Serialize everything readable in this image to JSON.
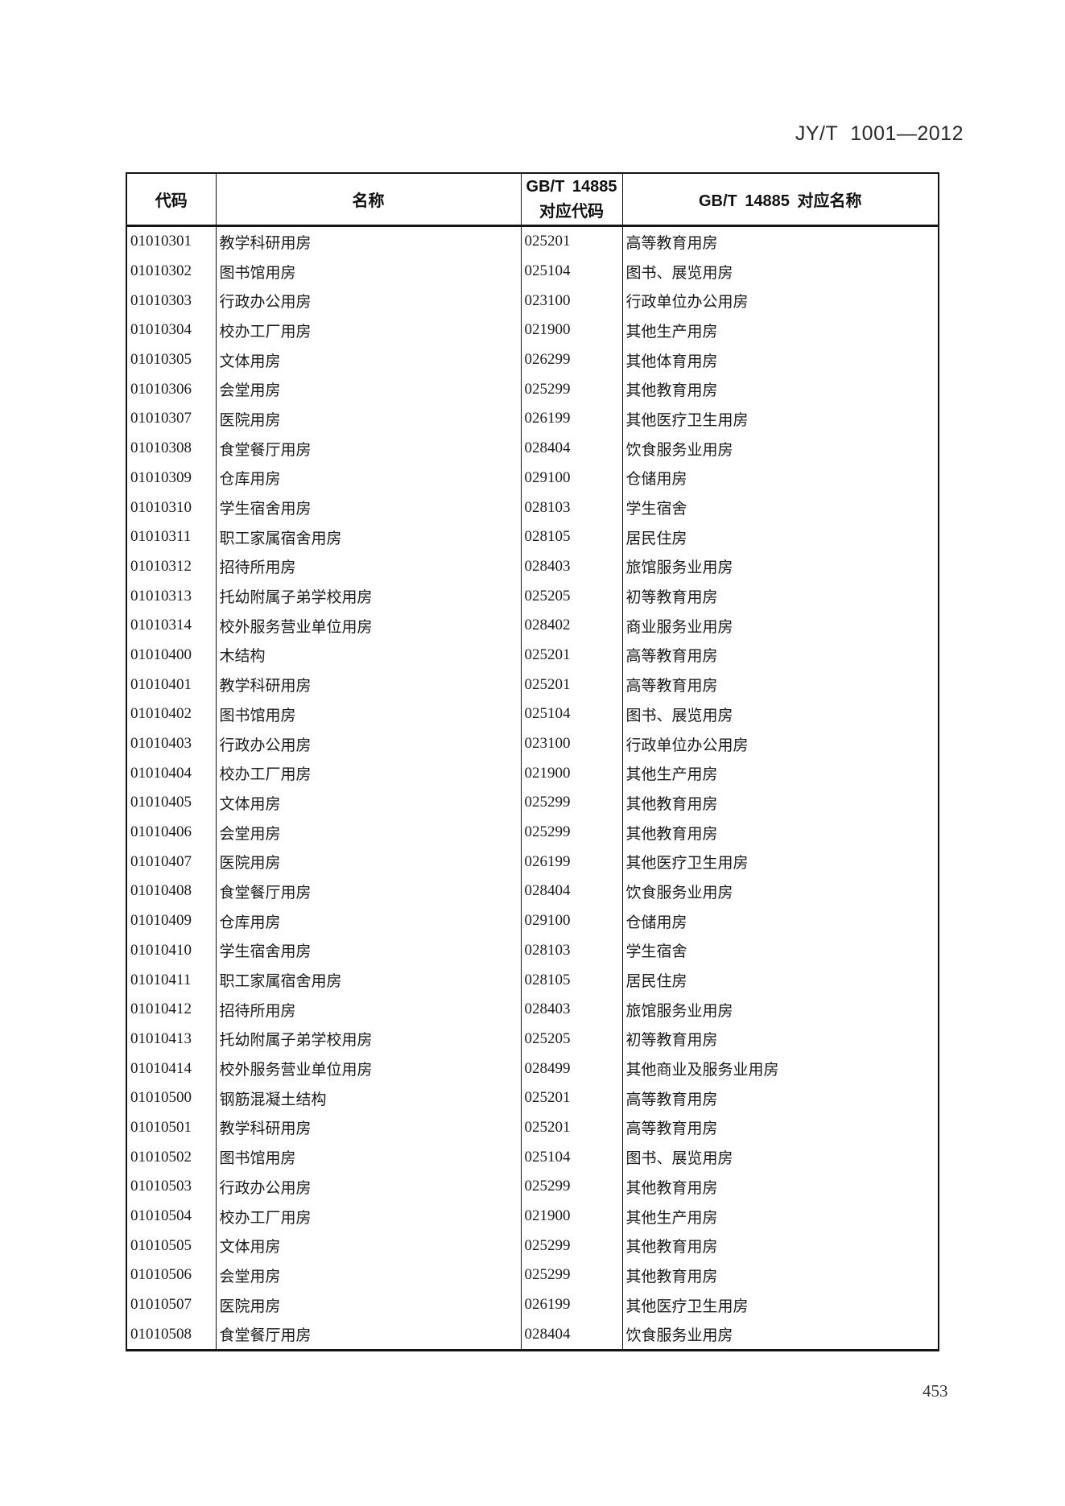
{
  "page": {
    "doc_number": "JY/T 1001—2012",
    "page_number": "453"
  },
  "table": {
    "headers": {
      "code": "代码",
      "name": "名称",
      "gbt_code": "GB/T 14885\n对应代码",
      "gbt_name": "GB/T 14885 对应名称"
    },
    "rows": [
      {
        "code": "01010301",
        "name": "教学科研用房",
        "gbt_code": "025201",
        "gbt_name": "高等教育用房"
      },
      {
        "code": "01010302",
        "name": "图书馆用房",
        "gbt_code": "025104",
        "gbt_name": "图书、展览用房"
      },
      {
        "code": "01010303",
        "name": "行政办公用房",
        "gbt_code": "023100",
        "gbt_name": "行政单位办公用房"
      },
      {
        "code": "01010304",
        "name": "校办工厂用房",
        "gbt_code": "021900",
        "gbt_name": "其他生产用房"
      },
      {
        "code": "01010305",
        "name": "文体用房",
        "gbt_code": "026299",
        "gbt_name": "其他体育用房"
      },
      {
        "code": "01010306",
        "name": "会堂用房",
        "gbt_code": "025299",
        "gbt_name": "其他教育用房"
      },
      {
        "code": "01010307",
        "name": "医院用房",
        "gbt_code": "026199",
        "gbt_name": "其他医疗卫生用房"
      },
      {
        "code": "01010308",
        "name": "食堂餐厅用房",
        "gbt_code": "028404",
        "gbt_name": "饮食服务业用房"
      },
      {
        "code": "01010309",
        "name": "仓库用房",
        "gbt_code": "029100",
        "gbt_name": "仓储用房"
      },
      {
        "code": "01010310",
        "name": "学生宿舍用房",
        "gbt_code": "028103",
        "gbt_name": "学生宿舍"
      },
      {
        "code": "01010311",
        "name": "职工家属宿舍用房",
        "gbt_code": "028105",
        "gbt_name": "居民住房"
      },
      {
        "code": "01010312",
        "name": "招待所用房",
        "gbt_code": "028403",
        "gbt_name": "旅馆服务业用房"
      },
      {
        "code": "01010313",
        "name": "托幼附属子弟学校用房",
        "gbt_code": "025205",
        "gbt_name": "初等教育用房"
      },
      {
        "code": "01010314",
        "name": "校外服务营业单位用房",
        "gbt_code": "028402",
        "gbt_name": "商业服务业用房"
      },
      {
        "code": "01010400",
        "name": "木结构",
        "gbt_code": "025201",
        "gbt_name": "高等教育用房"
      },
      {
        "code": "01010401",
        "name": "教学科研用房",
        "gbt_code": "025201",
        "gbt_name": "高等教育用房"
      },
      {
        "code": "01010402",
        "name": "图书馆用房",
        "gbt_code": "025104",
        "gbt_name": "图书、展览用房"
      },
      {
        "code": "01010403",
        "name": "行政办公用房",
        "gbt_code": "023100",
        "gbt_name": "行政单位办公用房"
      },
      {
        "code": "01010404",
        "name": "校办工厂用房",
        "gbt_code": "021900",
        "gbt_name": "其他生产用房"
      },
      {
        "code": "01010405",
        "name": "文体用房",
        "gbt_code": "025299",
        "gbt_name": "其他教育用房"
      },
      {
        "code": "01010406",
        "name": "会堂用房",
        "gbt_code": "025299",
        "gbt_name": "其他教育用房"
      },
      {
        "code": "01010407",
        "name": "医院用房",
        "gbt_code": "026199",
        "gbt_name": "其他医疗卫生用房"
      },
      {
        "code": "01010408",
        "name": "食堂餐厅用房",
        "gbt_code": "028404",
        "gbt_name": "饮食服务业用房"
      },
      {
        "code": "01010409",
        "name": "仓库用房",
        "gbt_code": "029100",
        "gbt_name": "仓储用房"
      },
      {
        "code": "01010410",
        "name": "学生宿舍用房",
        "gbt_code": "028103",
        "gbt_name": "学生宿舍"
      },
      {
        "code": "01010411",
        "name": "职工家属宿舍用房",
        "gbt_code": "028105",
        "gbt_name": "居民住房"
      },
      {
        "code": "01010412",
        "name": "招待所用房",
        "gbt_code": "028403",
        "gbt_name": "旅馆服务业用房"
      },
      {
        "code": "01010413",
        "name": "托幼附属子弟学校用房",
        "gbt_code": "025205",
        "gbt_name": "初等教育用房"
      },
      {
        "code": "01010414",
        "name": "校外服务营业单位用房",
        "gbt_code": "028499",
        "gbt_name": "其他商业及服务业用房"
      },
      {
        "code": "01010500",
        "name": "钢筋混凝土结构",
        "gbt_code": "025201",
        "gbt_name": "高等教育用房"
      },
      {
        "code": "01010501",
        "name": "教学科研用房",
        "gbt_code": "025201",
        "gbt_name": "高等教育用房"
      },
      {
        "code": "01010502",
        "name": "图书馆用房",
        "gbt_code": "025104",
        "gbt_name": "图书、展览用房"
      },
      {
        "code": "01010503",
        "name": "行政办公用房",
        "gbt_code": "025299",
        "gbt_name": "其他教育用房"
      },
      {
        "code": "01010504",
        "name": "校办工厂用房",
        "gbt_code": "021900",
        "gbt_name": "其他生产用房"
      },
      {
        "code": "01010505",
        "name": "文体用房",
        "gbt_code": "025299",
        "gbt_name": "其他教育用房"
      },
      {
        "code": "01010506",
        "name": "会堂用房",
        "gbt_code": "025299",
        "gbt_name": "其他教育用房"
      },
      {
        "code": "01010507",
        "name": "医院用房",
        "gbt_code": "026199",
        "gbt_name": "其他医疗卫生用房"
      },
      {
        "code": "01010508",
        "name": "食堂餐厅用房",
        "gbt_code": "028404",
        "gbt_name": "饮食服务业用房"
      }
    ]
  }
}
